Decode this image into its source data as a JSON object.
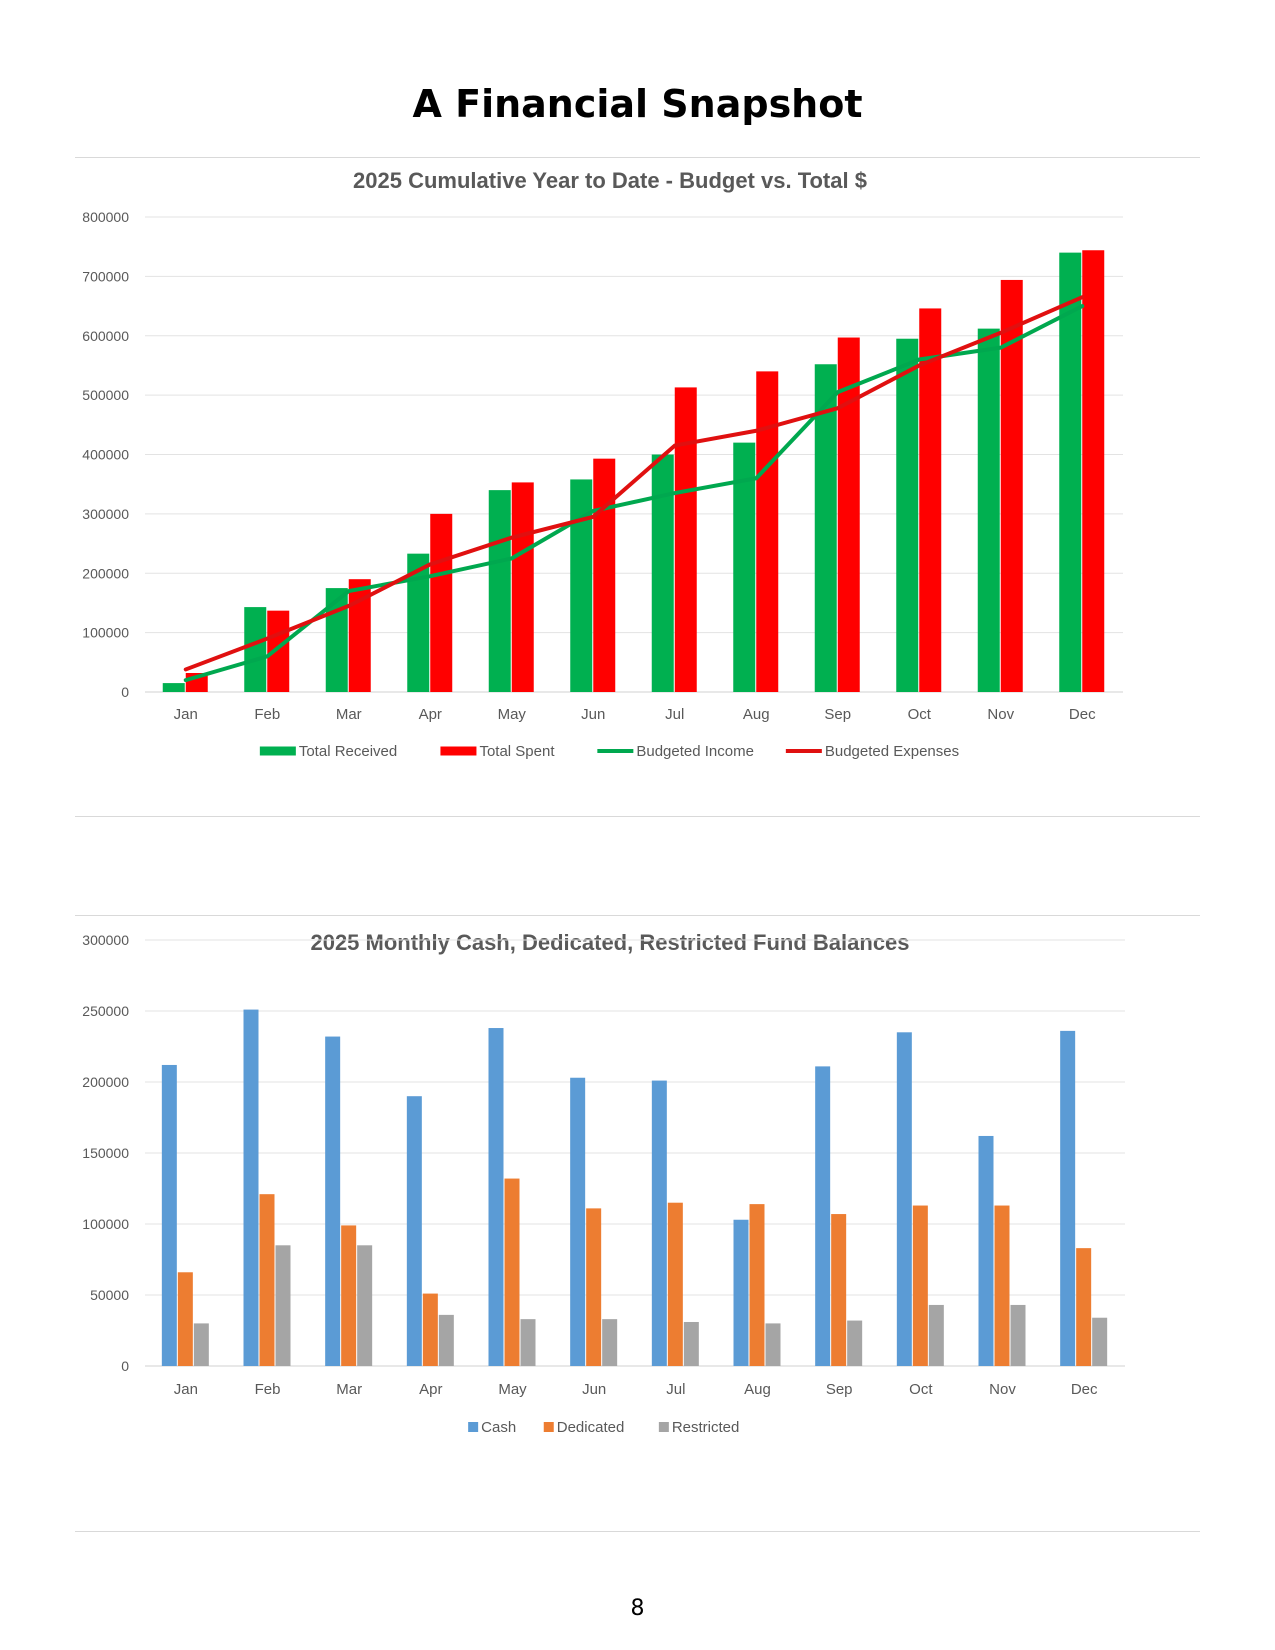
{
  "page": {
    "title": "A Financial Snapshot",
    "page_number": "8"
  },
  "chart_data": [
    {
      "type": "bar",
      "title": "2025 Cumulative Year to Date - Budget vs. Total $",
      "categories": [
        "Jan",
        "Feb",
        "Mar",
        "Apr",
        "May",
        "Jun",
        "Jul",
        "Aug",
        "Sep",
        "Oct",
        "Nov",
        "Dec"
      ],
      "ylim": [
        0,
        800000
      ],
      "yticks": [
        0,
        100000,
        200000,
        300000,
        400000,
        500000,
        600000,
        700000,
        800000
      ],
      "grid": true,
      "legend": "bottom",
      "series": [
        {
          "name": "Total Received",
          "kind": "bar",
          "color": "#00b050",
          "values": [
            15000,
            143000,
            175000,
            233000,
            340000,
            358000,
            400000,
            420000,
            552000,
            595000,
            612000,
            740000
          ]
        },
        {
          "name": "Total Spent",
          "kind": "bar",
          "color": "#ff0000",
          "values": [
            32000,
            137000,
            190000,
            300000,
            353000,
            393000,
            513000,
            540000,
            597000,
            646000,
            694000,
            744000
          ]
        },
        {
          "name": "Budgeted Income",
          "kind": "line",
          "color": "#00a84f",
          "values": [
            20000,
            60000,
            170000,
            195000,
            225000,
            305000,
            335000,
            360000,
            505000,
            560000,
            580000,
            650000
          ]
        },
        {
          "name": "Budgeted Expenses",
          "kind": "line",
          "color": "#e01010",
          "values": [
            38000,
            90000,
            145000,
            215000,
            260000,
            295000,
            415000,
            440000,
            478000,
            550000,
            605000,
            665000
          ]
        }
      ]
    },
    {
      "type": "bar",
      "title": "2025 Monthly Cash, Dedicated, Restricted Fund Balances",
      "categories": [
        "Jan",
        "Feb",
        "Mar",
        "Apr",
        "May",
        "Jun",
        "Jul",
        "Aug",
        "Sep",
        "Oct",
        "Nov",
        "Dec"
      ],
      "ylim": [
        0,
        300000
      ],
      "yticks": [
        0,
        50000,
        100000,
        150000,
        200000,
        250000,
        300000
      ],
      "grid": true,
      "legend": "bottom",
      "series": [
        {
          "name": "Cash",
          "kind": "bar",
          "color": "#5b9bd5",
          "values": [
            212000,
            251000,
            232000,
            190000,
            238000,
            203000,
            201000,
            103000,
            211000,
            235000,
            162000,
            236000
          ]
        },
        {
          "name": "Dedicated",
          "kind": "bar",
          "color": "#ed7d31",
          "values": [
            66000,
            121000,
            99000,
            51000,
            132000,
            111000,
            115000,
            114000,
            107000,
            113000,
            113000,
            83000
          ]
        },
        {
          "name": "Restricted",
          "kind": "bar",
          "color": "#a5a5a5",
          "values": [
            30000,
            85000,
            85000,
            36000,
            33000,
            33000,
            31000,
            30000,
            32000,
            43000,
            43000,
            34000
          ]
        }
      ]
    }
  ]
}
